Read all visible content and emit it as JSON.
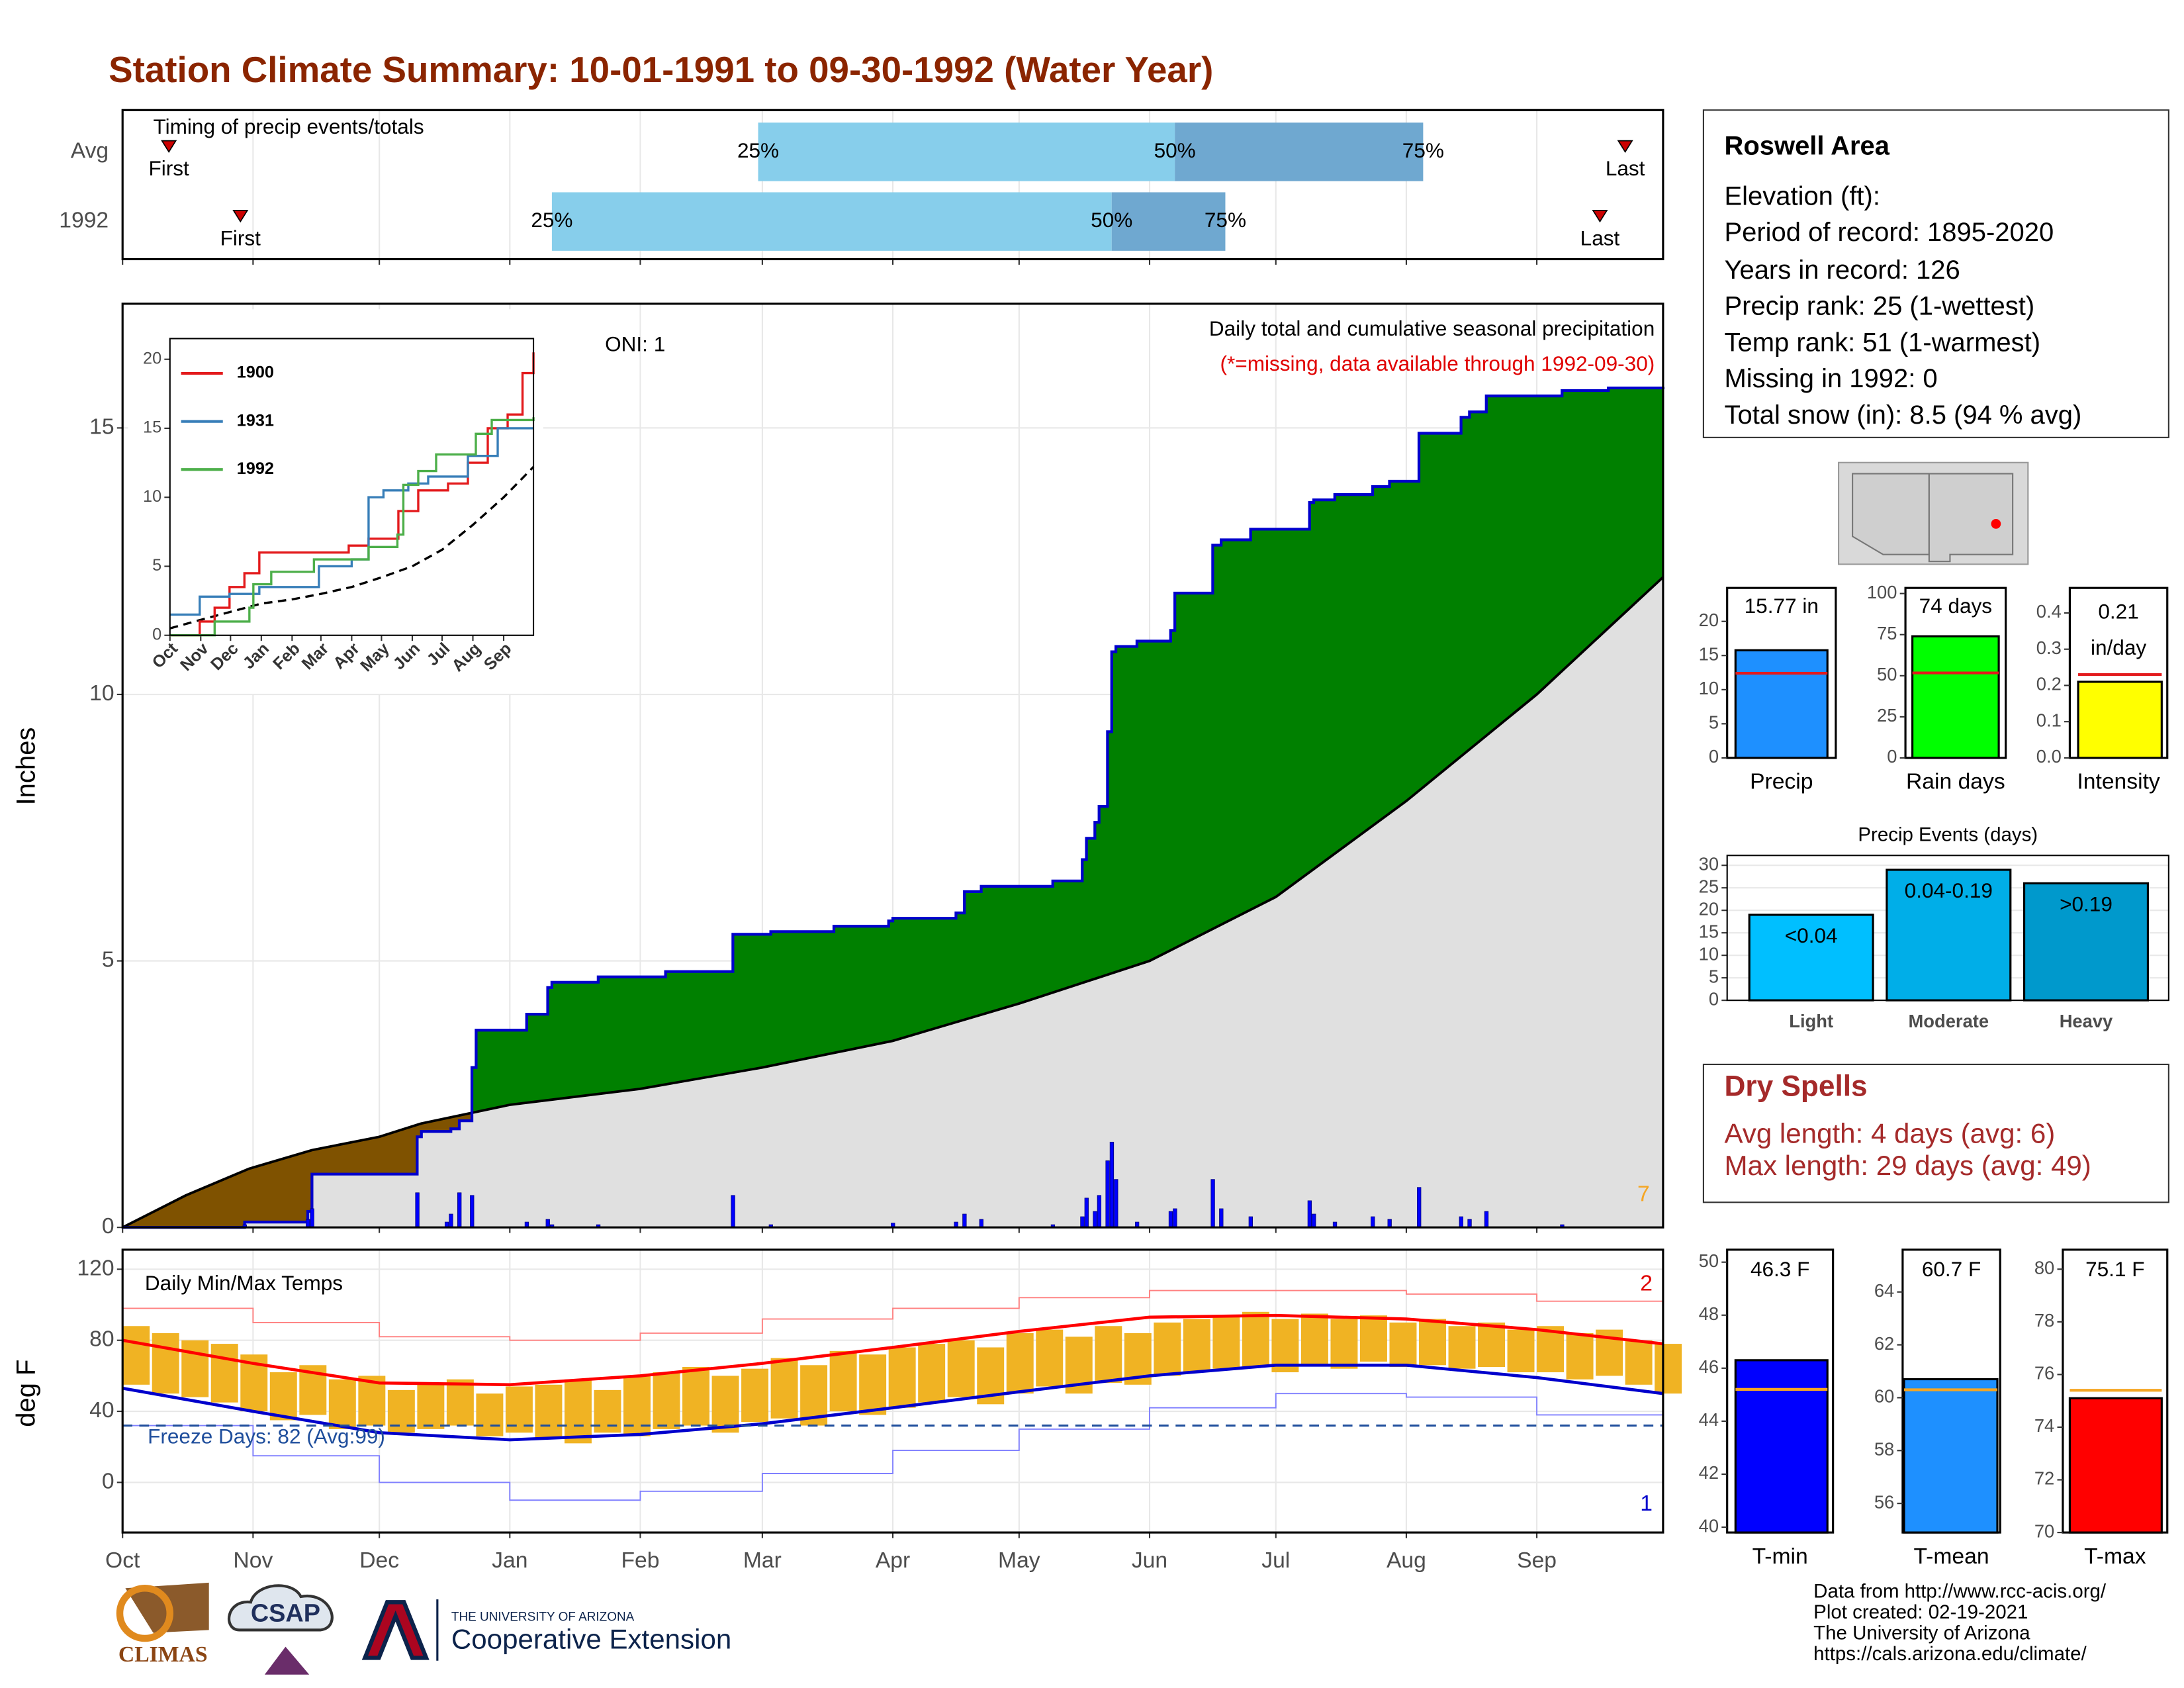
{
  "title": "Station Climate Summary: 10-01-1991 to 09-30-1992 (Water Year)",
  "station": {
    "name": "Roswell Area",
    "lines": [
      "Elevation (ft):",
      "Period of record: 1895-2020",
      "Years in record: 126",
      "Precip rank: 25 (1-wettest)",
      "Temp rank: 51 (1-warmest)",
      "Missing in 1992: 0",
      "Total snow (in): 8.5 (94 % avg)"
    ]
  },
  "dry_spells": {
    "title": "Dry Spells",
    "lines": [
      "Avg length: 4 days (avg: 6)",
      "Max length: 29 days (avg: 49)"
    ]
  },
  "footer": {
    "lines": [
      "Data from http://www.rcc-acis.org/",
      "Plot created: 02-19-2021",
      "The University of Arizona",
      "https://cals.arizona.edu/climate/"
    ]
  },
  "logos": {
    "climas": "CLIMAS",
    "csap": "CSAP",
    "ua": "THE UNIVERSITY OF ARIZONA",
    "extension": "Cooperative Extension"
  },
  "chart_data": [
    {
      "type": "timing",
      "title": "Timing of precip events/totals",
      "xlim": [
        0,
        366
      ],
      "xticks": [
        0,
        31,
        61,
        92,
        123,
        152,
        183,
        213,
        244,
        274,
        305,
        336
      ],
      "grid": true,
      "labels": {
        "first": "First",
        "p25": "25%",
        "p50": "50%",
        "p75": "75%",
        "last": "Last"
      },
      "colors": {
        "light": "#87ceeb",
        "dark": "#6fa8d0",
        "marker": "#cc0000"
      },
      "rows": [
        {
          "name": "Avg",
          "first": 11,
          "p25": 151,
          "p50": 250,
          "p75": 309,
          "last": 357
        },
        {
          "name": "1992",
          "first": 28,
          "p25": 102,
          "p50": 235,
          "p75": 262,
          "last": 351
        }
      ]
    },
    {
      "type": "cumulative",
      "title": "Daily total and cumulative seasonal precipitation",
      "subtitle": "(*=missing, data available through 1992-09-30)",
      "annotation": "ONI: 1",
      "count_label": "7",
      "ylabel": "Inches",
      "xlim": [
        0,
        366
      ],
      "xticks": [
        0,
        31,
        61,
        92,
        123,
        152,
        183,
        213,
        244,
        274,
        305,
        336
      ],
      "ylim": [
        0,
        17.33
      ],
      "yticks": [
        0,
        5,
        10,
        15
      ],
      "grid": true,
      "colors": {
        "above": "#008000",
        "below": "#7f5200",
        "base": "#e0e0e0",
        "line": "#0000cc",
        "average": "#000000",
        "daily": "#0000ff"
      },
      "cumulative": {
        "x": [
          0,
          29,
          44,
          45,
          70,
          71,
          78,
          80,
          83,
          84,
          96,
          101,
          102,
          113,
          129,
          145,
          154,
          169,
          182,
          183,
          198,
          200,
          204,
          221,
          228,
          229,
          231,
          232,
          234,
          235,
          236,
          241,
          249,
          250,
          259,
          261,
          268,
          282,
          283,
          288,
          297,
          301,
          308,
          318,
          320,
          324,
          342,
          353,
          366
        ],
        "values": [
          0,
          0.1,
          0.3,
          1.0,
          1.7,
          1.8,
          1.85,
          2.0,
          3.0,
          3.7,
          4.0,
          4.5,
          4.6,
          4.7,
          4.8,
          5.5,
          5.55,
          5.65,
          5.75,
          5.8,
          5.9,
          6.3,
          6.4,
          6.5,
          6.9,
          7.3,
          7.6,
          7.9,
          9.3,
          10.8,
          10.9,
          11.0,
          11.2,
          11.9,
          12.8,
          12.9,
          13.1,
          13.6,
          13.65,
          13.75,
          13.9,
          14.0,
          14.9,
          15.2,
          15.3,
          15.6,
          15.7,
          15.75,
          15.77
        ]
      },
      "average": {
        "x": [
          0,
          15,
          30,
          45,
          61,
          71,
          92,
          123,
          152,
          183,
          213,
          244,
          274,
          305,
          336,
          366
        ],
        "values": [
          0,
          0.6,
          1.1,
          1.45,
          1.7,
          1.95,
          2.3,
          2.6,
          3.0,
          3.5,
          4.2,
          5.0,
          6.2,
          8.0,
          10.0,
          12.2
        ]
      },
      "daily": {
        "x": [
          29,
          44,
          45,
          70,
          77,
          78,
          80,
          83,
          96,
          101,
          102,
          113,
          145,
          154,
          183,
          198,
          200,
          204,
          221,
          228,
          229,
          231,
          232,
          234,
          235,
          236,
          241,
          249,
          250,
          259,
          261,
          268,
          282,
          283,
          288,
          297,
          301,
          308,
          318,
          320,
          324,
          342
        ],
        "values": [
          0.05,
          0.15,
          0.35,
          0.65,
          0.1,
          0.25,
          0.65,
          0.6,
          0.1,
          0.15,
          0.05,
          0.05,
          0.6,
          0.05,
          0.08,
          0.1,
          0.25,
          0.15,
          0.05,
          0.2,
          0.55,
          0.3,
          0.6,
          1.25,
          1.6,
          0.9,
          0.1,
          0.3,
          0.35,
          0.9,
          0.35,
          0.2,
          0.5,
          0.25,
          0.1,
          0.2,
          0.15,
          0.75,
          0.2,
          0.15,
          0.3,
          0.05
        ]
      }
    },
    {
      "type": "line",
      "xlim": [
        0,
        366
      ],
      "ylim": [
        0,
        21.5
      ],
      "yticks": [
        0,
        5,
        10,
        15,
        20
      ],
      "xticks": [
        {
          "value": 0,
          "label": "Oct"
        },
        {
          "value": 31,
          "label": "Nov"
        },
        {
          "value": 61,
          "label": "Dec"
        },
        {
          "value": 92,
          "label": "Jan"
        },
        {
          "value": 123,
          "label": "Feb"
        },
        {
          "value": 152,
          "label": "Mar"
        },
        {
          "value": 183,
          "label": "Apr"
        },
        {
          "value": 213,
          "label": "May"
        },
        {
          "value": 244,
          "label": "Jun"
        },
        {
          "value": 274,
          "label": "Jul"
        },
        {
          "value": 305,
          "label": "Aug"
        },
        {
          "value": 336,
          "label": "Sep"
        }
      ],
      "series": [
        {
          "name": "1900",
          "color": "#e31a1c",
          "x": [
            0,
            30,
            45,
            60,
            75,
            90,
            150,
            180,
            200,
            230,
            250,
            280,
            300,
            320,
            340,
            355,
            366
          ],
          "values": [
            0,
            1,
            2,
            3.5,
            4.5,
            6,
            6,
            6.5,
            7,
            9,
            10.5,
            11,
            12.5,
            15,
            16,
            19,
            20.5
          ]
        },
        {
          "name": "1931",
          "color": "#377eb8",
          "x": [
            0,
            30,
            60,
            90,
            150,
            183,
            200,
            215,
            240,
            260,
            300,
            330,
            366
          ],
          "values": [
            1.5,
            2.8,
            3,
            3.5,
            5,
            5.5,
            10,
            10.5,
            11,
            11.5,
            13,
            15,
            15
          ]
        },
        {
          "name": "1992",
          "color": "#4daf4a",
          "x": [
            0,
            45,
            80,
            84,
            102,
            145,
            200,
            229,
            235,
            250,
            268,
            308,
            324,
            366
          ],
          "values": [
            0,
            1,
            2,
            3.7,
            4.6,
            5.5,
            6.4,
            7.3,
            10.9,
            11.9,
            13.1,
            14.6,
            15.6,
            15.8
          ]
        }
      ],
      "average": {
        "color": "#000000",
        "x": [
          0,
          30,
          61,
          92,
          123,
          152,
          183,
          213,
          244,
          274,
          305,
          336,
          366
        ],
        "values": [
          0.5,
          1.1,
          1.7,
          2.3,
          2.6,
          3.0,
          3.5,
          4.2,
          5.0,
          6.2,
          8.0,
          10.0,
          12.2
        ]
      }
    },
    {
      "type": "temps",
      "title": "Daily Min/Max Temps",
      "ylabel": "deg F",
      "annotation": "Freeze Days: 82 (Avg:99)",
      "high_label": "2",
      "low_label": "1",
      "freeze": 32,
      "xlim": [
        0,
        366
      ],
      "ylim": [
        -28.2,
        131
      ],
      "yticks": [
        0,
        40,
        80,
        120
      ],
      "grid": true,
      "xticks": [
        {
          "value": 0,
          "label": "Oct"
        },
        {
          "value": 31,
          "label": "Nov"
        },
        {
          "value": 61,
          "label": "Dec"
        },
        {
          "value": 92,
          "label": "Jan"
        },
        {
          "value": 123,
          "label": "Feb"
        },
        {
          "value": 152,
          "label": "Mar"
        },
        {
          "value": 183,
          "label": "Apr"
        },
        {
          "value": 213,
          "label": "May"
        },
        {
          "value": 244,
          "label": "Jun"
        },
        {
          "value": 274,
          "label": "Jul"
        },
        {
          "value": 305,
          "label": "Aug"
        },
        {
          "value": 336,
          "label": "Sep"
        }
      ],
      "daily": {
        "color": "#f0b323",
        "width": 7,
        "x": [
          0,
          7,
          14,
          21,
          28,
          35,
          42,
          49,
          56,
          63,
          70,
          77,
          84,
          91,
          98,
          105,
          112,
          119,
          126,
          133,
          140,
          147,
          154,
          161,
          168,
          175,
          182,
          189,
          196,
          203,
          210,
          217,
          224,
          231,
          238,
          245,
          252,
          259,
          266,
          273,
          280,
          287,
          294,
          301,
          308,
          315,
          322,
          329,
          336,
          343,
          350,
          357,
          364
        ],
        "max": [
          88,
          84,
          80,
          78,
          72,
          62,
          66,
          58,
          60,
          52,
          55,
          58,
          50,
          54,
          55,
          58,
          52,
          60,
          62,
          65,
          60,
          64,
          70,
          66,
          74,
          72,
          76,
          78,
          80,
          76,
          84,
          86,
          82,
          88,
          84,
          90,
          92,
          94,
          96,
          92,
          95,
          92,
          94,
          90,
          92,
          88,
          90,
          86,
          88,
          84,
          86,
          80,
          78
        ],
        "min": [
          55,
          50,
          48,
          45,
          40,
          35,
          38,
          30,
          32,
          28,
          30,
          32,
          26,
          28,
          25,
          22,
          28,
          26,
          30,
          32,
          28,
          34,
          36,
          32,
          40,
          38,
          42,
          45,
          48,
          44,
          50,
          54,
          50,
          56,
          55,
          60,
          62,
          64,
          65,
          62,
          66,
          64,
          68,
          65,
          66,
          64,
          65,
          62,
          62,
          58,
          60,
          55,
          50
        ]
      },
      "avg_max": {
        "color": "#ff0000",
        "x": [
          0,
          31,
          61,
          92,
          123,
          152,
          183,
          213,
          244,
          274,
          305,
          336,
          366
        ],
        "values": [
          80,
          67,
          56,
          55,
          60,
          67,
          76,
          85,
          93,
          94,
          92,
          86,
          78
        ]
      },
      "avg_min": {
        "color": "#0000cc",
        "x": [
          0,
          31,
          61,
          92,
          123,
          152,
          183,
          213,
          244,
          274,
          305,
          336,
          366
        ],
        "values": [
          53,
          40,
          28,
          24,
          27,
          33,
          42,
          51,
          60,
          66,
          66,
          59,
          50
        ]
      },
      "record_max": {
        "color": "#ff8080",
        "x": [
          0,
          31,
          61,
          92,
          123,
          152,
          183,
          213,
          244,
          274,
          305,
          336,
          366
        ],
        "values": [
          98,
          90,
          82,
          80,
          84,
          92,
          98,
          104,
          108,
          108,
          106,
          102,
          98
        ]
      },
      "record_min": {
        "color": "#8080ff",
        "x": [
          0,
          31,
          61,
          92,
          123,
          152,
          183,
          213,
          244,
          274,
          305,
          336,
          366
        ],
        "values": [
          32,
          15,
          0,
          -10,
          -5,
          5,
          18,
          30,
          42,
          50,
          48,
          38,
          30
        ]
      }
    },
    {
      "type": "bar",
      "category": "Precip",
      "value": 15.77,
      "value_label": "15.77 in",
      "avg": 12.4,
      "color": "#1e90ff",
      "avg_color": "#e31a1c",
      "ylim": [
        0,
        24.9
      ],
      "yticks": [
        0,
        5,
        10,
        15,
        20
      ]
    },
    {
      "type": "bar",
      "category": "Rain days",
      "value": 74,
      "value_label": "74 days",
      "avg": 51.7,
      "color": "#00ff00",
      "avg_color": "#e31a1c",
      "ylim": [
        0,
        103.4
      ],
      "yticks": [
        0,
        25,
        50,
        75,
        100
      ]
    },
    {
      "type": "bar",
      "category": "Intensity",
      "value": 0.21,
      "value_label": "0.21",
      "unit": "in/day",
      "avg": 0.23,
      "color": "#ffff00",
      "avg_color": "#e31a1c",
      "ylim": [
        0,
        0.469
      ],
      "yticks": [
        {
          "value": 0,
          "label": "0.0"
        },
        0.1,
        0.2,
        0.3,
        0.4
      ]
    },
    {
      "type": "bar",
      "title": "Precip Events (days)",
      "categories": [
        "Light",
        "Moderate",
        "Heavy"
      ],
      "values": [
        19,
        29,
        26
      ],
      "value_labels": [
        "<0.04",
        "0.04-0.19",
        ">0.19"
      ],
      "colors": [
        "#00bfff",
        "#00aee8",
        "#0099cc"
      ],
      "ylim": [
        0,
        32.2
      ],
      "yticks": [
        0,
        5,
        10,
        15,
        20,
        25,
        30
      ],
      "grid": true
    },
    {
      "type": "bar",
      "category": "T-min",
      "value": 46.3,
      "value_label": "46.3 F",
      "avg": 45.2,
      "color": "#0000ff",
      "avg_color": "#f5a623",
      "ylim": [
        39.8,
        50.47
      ],
      "yticks": [
        40,
        42,
        44,
        46,
        48,
        50
      ]
    },
    {
      "type": "bar",
      "category": "T-mean",
      "value": 60.7,
      "value_label": "60.7 F",
      "avg": 60.3,
      "color": "#1e90ff",
      "avg_color": "#f5a623",
      "ylim": [
        54.9,
        65.6
      ],
      "yticks": [
        56,
        58,
        60,
        62,
        64
      ]
    },
    {
      "type": "bar",
      "category": "T-max",
      "value": 75.1,
      "value_label": "75.1 F",
      "avg": 75.4,
      "color": "#ff0000",
      "avg_color": "#f5a623",
      "ylim": [
        70,
        80.74
      ],
      "yticks": [
        70,
        72,
        74,
        76,
        78,
        80
      ]
    }
  ]
}
